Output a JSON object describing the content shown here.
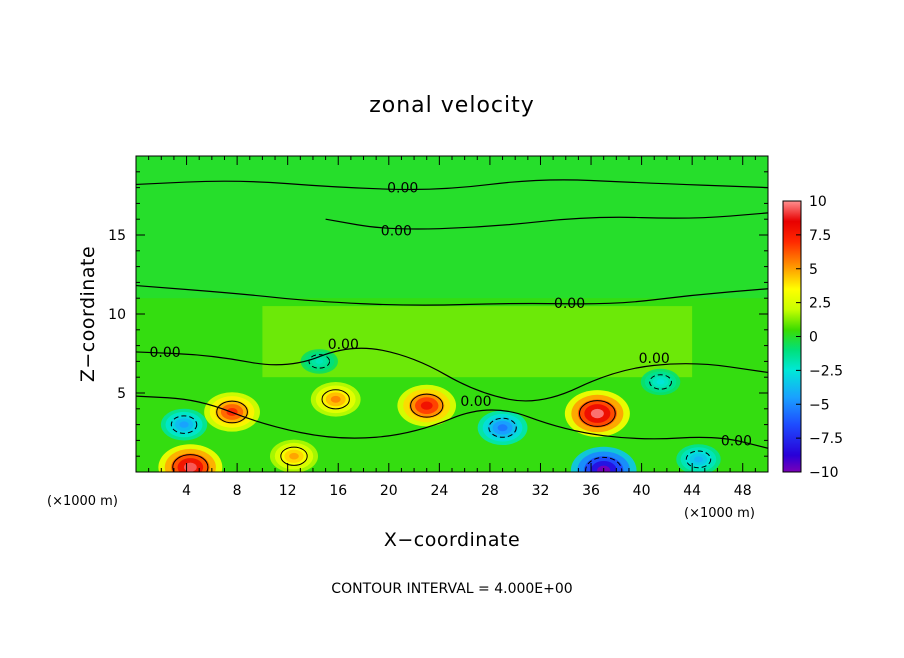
{
  "chart_data": {
    "type": "heatmap",
    "title": "zonal velocity",
    "xlabel": "X−coordinate",
    "ylabel": "Z−coordinate",
    "x_unit_label": "(×1000 m)",
    "x_unit_label_right": "(×1000 m)",
    "footer": "CONTOUR INTERVAL = 4.000E+00",
    "xlim": [
      0,
      50
    ],
    "ylim": [
      0,
      20
    ],
    "x_ticks": [
      4,
      8,
      12,
      16,
      20,
      24,
      28,
      32,
      36,
      40,
      44,
      48
    ],
    "x_tick_labels": [
      "4",
      "8",
      "12",
      "16",
      "20",
      "24",
      "28",
      "32",
      "36",
      "40",
      "44",
      "48"
    ],
    "y_ticks": [
      5,
      10,
      15
    ],
    "y_tick_labels": [
      "5",
      "10",
      "15"
    ],
    "colorbar": {
      "range": [
        -10,
        10
      ],
      "tick_values": [
        10,
        7.5,
        5,
        2.5,
        0,
        -2.5,
        -5,
        -7.5,
        -10
      ],
      "tick_labels": [
        "10",
        "7.5",
        "5",
        "2.5",
        "0",
        "−2.5",
        "−5",
        "−7.5",
        "−10"
      ],
      "stops": [
        {
          "value": -10,
          "color": "#7a00b8"
        },
        {
          "value": -8.75,
          "color": "#2800d8"
        },
        {
          "value": -6.5,
          "color": "#1e4cff"
        },
        {
          "value": -4.5,
          "color": "#1aa0ff"
        },
        {
          "value": -2.5,
          "color": "#00e8d8"
        },
        {
          "value": -1.0,
          "color": "#00e07a"
        },
        {
          "value": 0.5,
          "color": "#3cdc00"
        },
        {
          "value": 2.0,
          "color": "#c8ff00"
        },
        {
          "value": 3.5,
          "color": "#ffff00"
        },
        {
          "value": 5.0,
          "color": "#ffa000"
        },
        {
          "value": 7.0,
          "color": "#ff2800"
        },
        {
          "value": 8.5,
          "color": "#e80000"
        },
        {
          "value": 10,
          "color": "#ff9090"
        }
      ]
    },
    "background_value": 0.3,
    "features": [
      {
        "x": 4.3,
        "z": 0.3,
        "value": 9.5
      },
      {
        "x": 7.6,
        "z": 3.8,
        "value": 7.2
      },
      {
        "x": 12.5,
        "z": 1.0,
        "value": 5.0
      },
      {
        "x": 15.8,
        "z": 4.6,
        "value": 5.5
      },
      {
        "x": 23.0,
        "z": 4.2,
        "value": 8.0
      },
      {
        "x": 36.5,
        "z": 3.7,
        "value": 9.8
      },
      {
        "x": 3.8,
        "z": 3.0,
        "value": -4.5
      },
      {
        "x": 29.0,
        "z": 2.8,
        "value": -5.5
      },
      {
        "x": 37.0,
        "z": 0.1,
        "value": -10.0
      },
      {
        "x": 41.5,
        "z": 5.7,
        "value": -2.6
      },
      {
        "x": 44.5,
        "z": 0.8,
        "value": -4.0
      },
      {
        "x": 14.5,
        "z": 7.0,
        "value": -2.0
      }
    ],
    "contour_labels": [
      {
        "text": "0.00",
        "x": 21.1,
        "z": 18.0
      },
      {
        "text": "0.00",
        "x": 20.6,
        "z": 15.3
      },
      {
        "text": "0.00",
        "x": 34.3,
        "z": 10.7
      },
      {
        "text": "0.00",
        "x": 2.3,
        "z": 7.6
      },
      {
        "text": "0.00",
        "x": 16.4,
        "z": 8.1
      },
      {
        "text": "0.00",
        "x": 26.9,
        "z": 4.5
      },
      {
        "text": "0.00",
        "x": 41.0,
        "z": 7.2
      },
      {
        "text": "0.00",
        "x": 47.5,
        "z": 2.0
      }
    ]
  }
}
